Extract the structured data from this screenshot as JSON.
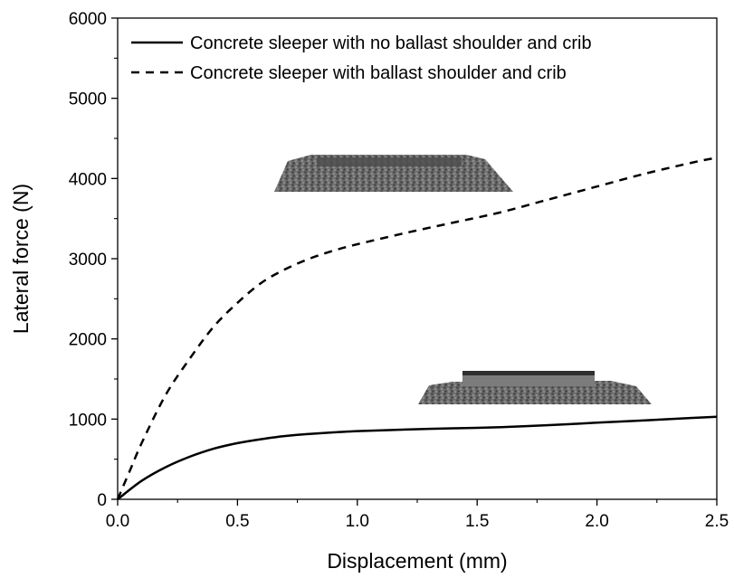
{
  "chart_data": {
    "type": "line",
    "xlabel": "Displacement (mm)",
    "ylabel": "Lateral force (N)",
    "xlim": [
      0,
      2.5
    ],
    "ylim": [
      0,
      6000
    ],
    "x_ticks": [
      "0.0",
      "0.5",
      "1.0",
      "1.5",
      "2.0",
      "2.5"
    ],
    "y_ticks": [
      "0",
      "1000",
      "2000",
      "3000",
      "4000",
      "5000",
      "6000"
    ],
    "grid": false,
    "legend_position": "top",
    "series": [
      {
        "name": "Concrete sleeper with no ballast shoulder and crib",
        "style": "solid",
        "color": "#000000",
        "x": [
          0,
          0.1,
          0.2,
          0.3,
          0.4,
          0.5,
          0.6,
          0.7,
          0.8,
          0.9,
          1.0,
          1.2,
          1.4,
          1.6,
          1.8,
          2.0,
          2.2,
          2.4,
          2.5
        ],
        "y": [
          0,
          230,
          400,
          530,
          630,
          700,
          750,
          790,
          815,
          835,
          850,
          870,
          885,
          900,
          925,
          955,
          985,
          1015,
          1030
        ]
      },
      {
        "name": "Concrete sleeper with ballast shoulder and crib",
        "style": "dashed",
        "color": "#000000",
        "x": [
          0,
          0.05,
          0.1,
          0.2,
          0.3,
          0.4,
          0.5,
          0.6,
          0.7,
          0.8,
          0.9,
          1.0,
          1.2,
          1.4,
          1.6,
          1.8,
          2.0,
          2.2,
          2.4,
          2.5
        ],
        "y": [
          0,
          350,
          700,
          1300,
          1750,
          2150,
          2450,
          2700,
          2870,
          3000,
          3100,
          3180,
          3320,
          3450,
          3580,
          3740,
          3900,
          4060,
          4200,
          4260
        ]
      }
    ]
  },
  "insets": [
    {
      "description_icon": "ballast-bed-with-shoulder-and-crib-image"
    },
    {
      "description_icon": "sleeper-on-ballast-no-shoulder-image"
    }
  ]
}
